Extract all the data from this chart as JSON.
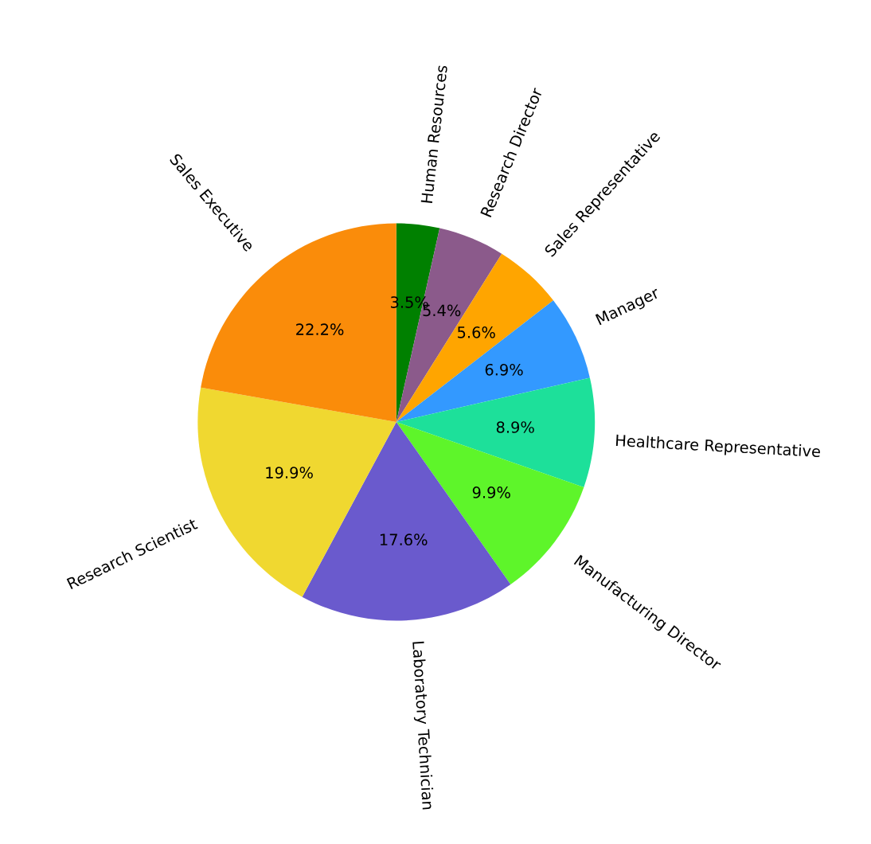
{
  "chart_data": {
    "type": "pie",
    "categories": [
      "Human Resources",
      "Research Director",
      "Sales Representative",
      "Manager",
      "Healthcare Representative",
      "Manufacturing Director",
      "Laboratory Technician",
      "Research Scientist",
      "Sales Executive"
    ],
    "values": [
      3.5,
      5.4,
      5.6,
      6.9,
      8.9,
      9.9,
      17.6,
      19.9,
      22.2
    ],
    "colors": [
      "#008000",
      "#8b5a8b",
      "#ffa500",
      "#3399ff",
      "#1de09a",
      "#5ef52a",
      "#6a5acd",
      "#f0d830",
      "#fa8c0a"
    ],
    "value_labels": [
      "3.5%",
      "5.4%",
      "5.6%",
      "6.9%",
      "8.9%",
      "9.9%",
      "17.6%",
      "19.9%",
      "22.2%"
    ]
  }
}
